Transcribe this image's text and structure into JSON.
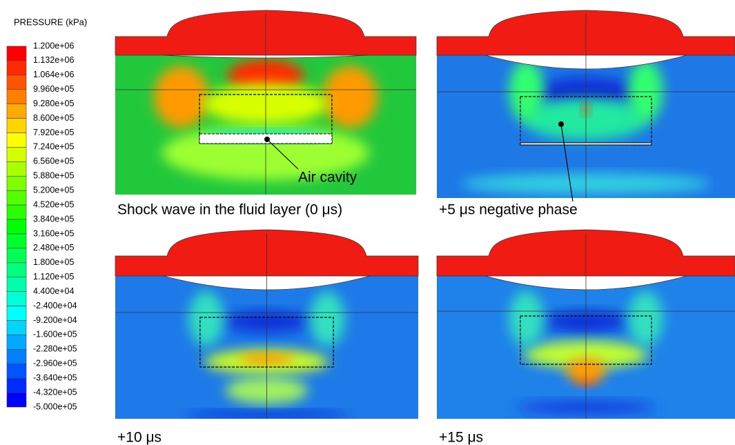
{
  "legend": {
    "title": "PRESSURE (kPa)",
    "labels": [
      "1.200e+06",
      "1.132e+06",
      "1.064e+06",
      "9.960e+05",
      "9.280e+05",
      "8.600e+05",
      "7.920e+05",
      "7.240e+05",
      "6.560e+05",
      "5.880e+05",
      "5.200e+05",
      "4.520e+05",
      "3.840e+05",
      "3.160e+05",
      "2.480e+05",
      "1.800e+05",
      "1.120e+05",
      "4.400e+04",
      "-2.400e+04",
      "-9.200e+04",
      "-1.600e+05",
      "-2.280e+05",
      "-2.960e+05",
      "-3.640e+05",
      "-4.320e+05",
      "-5.000e+05"
    ]
  },
  "panels": [
    {
      "caption": "Shock wave in the fluid layer (0 μs)",
      "annotation": "Air cavity"
    },
    {
      "caption": "+5 μs negative phase"
    },
    {
      "caption": "+10 μs"
    },
    {
      "caption": "+15 μs"
    }
  ]
}
